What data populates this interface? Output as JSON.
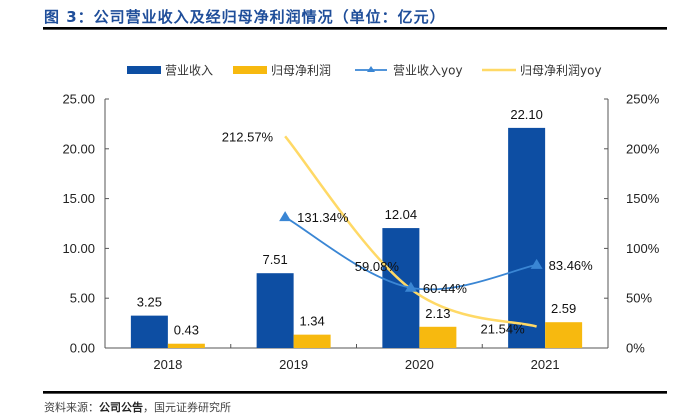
{
  "header": {
    "title": "图 3：公司营业收入及经归母净利润情况（单位：亿元）"
  },
  "footer": {
    "source_prefix": "资料来源：",
    "source_bold": "公司公告",
    "source_suffix": "，国元证券研究所"
  },
  "colors": {
    "revenue": "#0d4ea3",
    "net_profit": "#f7b90f",
    "revenue_yoy": "#3a86d4",
    "net_profit_yoy": "#ffd966",
    "title": "#1f4e9a"
  },
  "chart_data": {
    "type": "bar",
    "title": "公司营业收入及经归母净利润情况（单位：亿元）",
    "categories": [
      "2018",
      "2019",
      "2020",
      "2021"
    ],
    "series": [
      {
        "name": "营业收入",
        "type": "bar",
        "axis": "left",
        "values": [
          3.25,
          7.51,
          12.04,
          22.1
        ],
        "labels": [
          "3.25",
          "7.51",
          "12.04",
          "22.10"
        ]
      },
      {
        "name": "归母净利润",
        "type": "bar",
        "axis": "left",
        "values": [
          0.43,
          1.34,
          2.13,
          2.59
        ],
        "labels": [
          "0.43",
          "1.34",
          "2.13",
          "2.59"
        ]
      },
      {
        "name": "营业收入yoy",
        "type": "line",
        "marker": "triangle",
        "axis": "right",
        "values": [
          null,
          131.34,
          60.44,
          83.46
        ],
        "labels": [
          "",
          "131.34%",
          "60.44%",
          "83.46%"
        ]
      },
      {
        "name": "归母净利润yoy",
        "type": "line",
        "marker": "none",
        "axis": "right",
        "values": [
          null,
          212.57,
          59.08,
          21.54
        ],
        "labels": [
          "",
          "212.57%",
          "59.08%",
          "21.54%"
        ]
      }
    ],
    "left_axis": {
      "ylim": [
        0,
        25
      ],
      "ticks": [
        "0.00",
        "5.00",
        "10.00",
        "15.00",
        "20.00",
        "25.00"
      ]
    },
    "right_axis": {
      "ylim": [
        0,
        250
      ],
      "ticks": [
        "0%",
        "50%",
        "100%",
        "150%",
        "200%",
        "250%"
      ]
    },
    "xlabel": "",
    "ylabel": "",
    "grid": false,
    "legend": "top"
  }
}
